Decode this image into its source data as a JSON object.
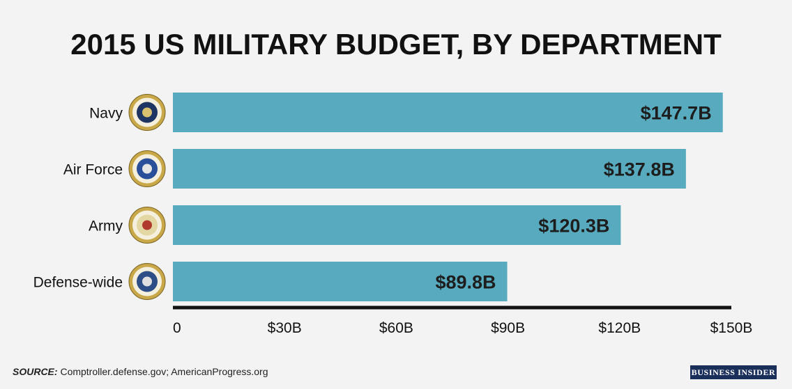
{
  "chart_data": {
    "type": "bar",
    "orientation": "horizontal",
    "title": "2015 US MILITARY BUDGET, BY DEPARTMENT",
    "categories": [
      "Navy",
      "Air Force",
      "Army",
      "Defense-wide"
    ],
    "values": [
      147.7,
      137.8,
      120.3,
      89.8
    ],
    "value_labels": [
      "$147.7B",
      "$137.8B",
      "$120.3B",
      "$89.8B"
    ],
    "category_icons": [
      "navy-seal-icon",
      "air-force-seal-icon",
      "army-seal-icon",
      "defense-seal-icon"
    ],
    "xlim": [
      0,
      150
    ],
    "xticks": [
      0,
      30,
      60,
      90,
      120,
      150
    ],
    "xtick_labels": [
      "0",
      "$30B",
      "$60B",
      "$90B",
      "$120B",
      "$150B"
    ],
    "xlabel": "",
    "ylabel": "",
    "grid": false,
    "bar_color": "#58abbf"
  },
  "source": {
    "label": "SOURCE:",
    "text": " Comptroller.defense.gov; AmericanProgress.org"
  },
  "brand": "BUSINESS INSIDER"
}
